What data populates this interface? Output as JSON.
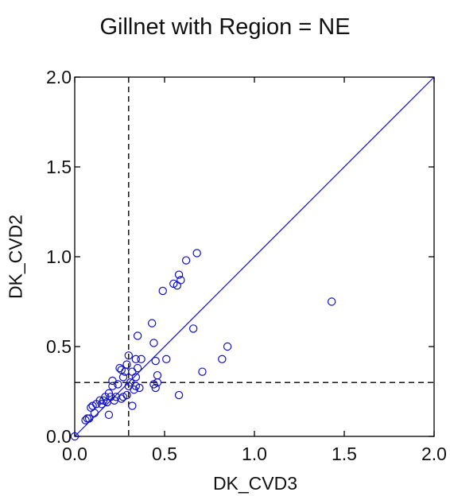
{
  "chart_data": {
    "type": "scatter",
    "title": "Gillnet with Region = NE",
    "xlabel": "DK_CVD3",
    "ylabel": "DK_CVD2",
    "xlim": [
      0.0,
      2.0
    ],
    "ylim": [
      0.0,
      2.0
    ],
    "xticks": [
      0.0,
      0.5,
      1.0,
      1.5,
      2.0
    ],
    "yticks": [
      0.0,
      0.5,
      1.0,
      1.5,
      2.0
    ],
    "xtick_labels": [
      "0.0",
      "0.5",
      "1.0",
      "1.5",
      "2.0"
    ],
    "ytick_labels": [
      "0.0",
      "0.5",
      "1.0",
      "1.5",
      "2.0"
    ],
    "grid": false,
    "reference_lines": {
      "identity_line": {
        "from": [
          0,
          0
        ],
        "to": [
          2,
          2
        ],
        "style": "solid",
        "color": "#1010c8"
      },
      "vertical_dashed_x": 0.3,
      "horizontal_dashed_y": 0.3
    },
    "marker": {
      "shape": "open-circle",
      "color": "#1010c8"
    },
    "points": [
      [
        0.0,
        0.0
      ],
      [
        0.06,
        0.09
      ],
      [
        0.07,
        0.1
      ],
      [
        0.08,
        0.1
      ],
      [
        0.09,
        0.16
      ],
      [
        0.1,
        0.17
      ],
      [
        0.11,
        0.13
      ],
      [
        0.12,
        0.18
      ],
      [
        0.14,
        0.2
      ],
      [
        0.15,
        0.18
      ],
      [
        0.16,
        0.2
      ],
      [
        0.17,
        0.22
      ],
      [
        0.18,
        0.19
      ],
      [
        0.19,
        0.24
      ],
      [
        0.19,
        0.12
      ],
      [
        0.2,
        0.22
      ],
      [
        0.21,
        0.28
      ],
      [
        0.21,
        0.31
      ],
      [
        0.22,
        0.2
      ],
      [
        0.23,
        0.22
      ],
      [
        0.24,
        0.29
      ],
      [
        0.25,
        0.38
      ],
      [
        0.26,
        0.37
      ],
      [
        0.26,
        0.21
      ],
      [
        0.27,
        0.22
      ],
      [
        0.27,
        0.33
      ],
      [
        0.28,
        0.36
      ],
      [
        0.29,
        0.23
      ],
      [
        0.29,
        0.4
      ],
      [
        0.3,
        0.45
      ],
      [
        0.3,
        0.28
      ],
      [
        0.31,
        0.3
      ],
      [
        0.32,
        0.36
      ],
      [
        0.32,
        0.17
      ],
      [
        0.33,
        0.26
      ],
      [
        0.34,
        0.28
      ],
      [
        0.34,
        0.33
      ],
      [
        0.34,
        0.43
      ],
      [
        0.35,
        0.38
      ],
      [
        0.35,
        0.56
      ],
      [
        0.36,
        0.27
      ],
      [
        0.37,
        0.43
      ],
      [
        0.43,
        0.63
      ],
      [
        0.44,
        0.52
      ],
      [
        0.44,
        0.29
      ],
      [
        0.45,
        0.27
      ],
      [
        0.45,
        0.42
      ],
      [
        0.46,
        0.34
      ],
      [
        0.46,
        0.3
      ],
      [
        0.49,
        0.81
      ],
      [
        0.51,
        0.43
      ],
      [
        0.55,
        0.85
      ],
      [
        0.57,
        0.84
      ],
      [
        0.58,
        0.9
      ],
      [
        0.58,
        0.23
      ],
      [
        0.59,
        0.87
      ],
      [
        0.62,
        0.98
      ],
      [
        0.66,
        0.6
      ],
      [
        0.68,
        1.02
      ],
      [
        0.71,
        0.36
      ],
      [
        0.82,
        0.43
      ],
      [
        0.85,
        0.5
      ],
      [
        1.43,
        0.75
      ]
    ]
  }
}
